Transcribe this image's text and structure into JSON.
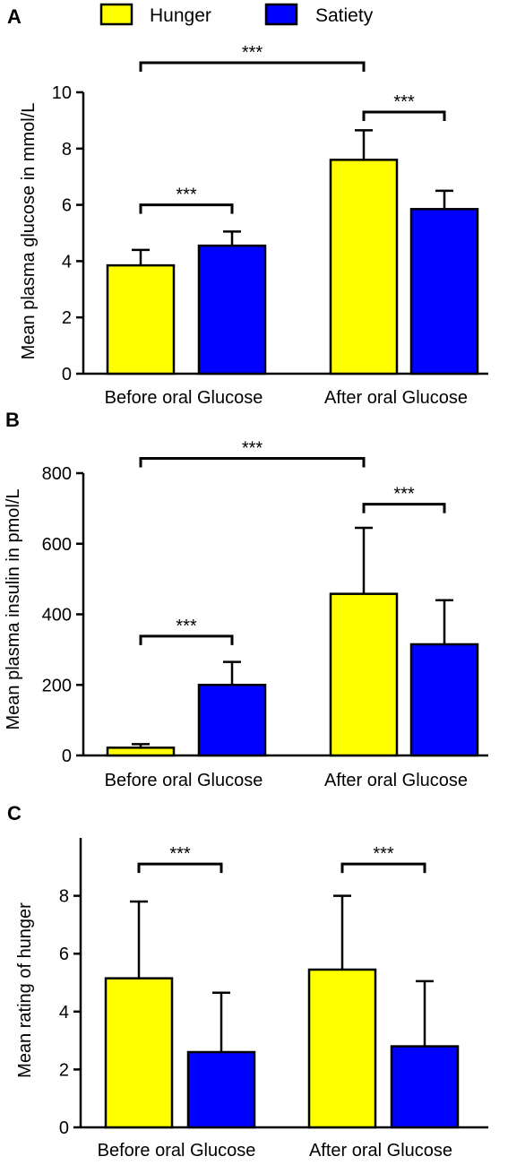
{
  "legend": [
    {
      "label": "Hunger",
      "color": "#ffff00"
    },
    {
      "label": "Satiety",
      "color": "#0000ff"
    }
  ],
  "chart_data": [
    {
      "panel": "A",
      "type": "bar",
      "categories": [
        "Before oral Glucose",
        "After oral Glucose"
      ],
      "series": [
        {
          "name": "Hunger",
          "values": [
            3.85,
            7.6
          ],
          "errors": [
            0.55,
            1.05
          ]
        },
        {
          "name": "Satiety",
          "values": [
            4.55,
            5.85
          ],
          "errors": [
            0.5,
            0.65
          ]
        }
      ],
      "ylabel": "Mean plasma glucose in mmol/L",
      "ylim": [
        0,
        10
      ],
      "yticks": [
        0,
        2,
        4,
        6,
        8,
        10
      ],
      "significance": [
        {
          "from": [
            "Before oral Glucose",
            "Hunger"
          ],
          "to": [
            "Before oral Glucose",
            "Satiety"
          ],
          "y": 6.0,
          "label": "***"
        },
        {
          "from": [
            "After oral Glucose",
            "Hunger"
          ],
          "to": [
            "After oral Glucose",
            "Satiety"
          ],
          "y": 9.3,
          "label": "***"
        },
        {
          "from": [
            "Before oral Glucose",
            "Hunger"
          ],
          "to": [
            "After oral Glucose",
            "Hunger"
          ],
          "y": 11.05,
          "label": "***"
        }
      ]
    },
    {
      "panel": "B",
      "type": "bar",
      "categories": [
        "Before oral Glucose",
        "After oral Glucose"
      ],
      "series": [
        {
          "name": "Hunger",
          "values": [
            22,
            458
          ],
          "errors": [
            10,
            187
          ]
        },
        {
          "name": "Satiety",
          "values": [
            200,
            315
          ],
          "errors": [
            65,
            125
          ]
        }
      ],
      "ylabel": "Mean plasma insulin in pmol/L",
      "ylim": [
        0,
        800
      ],
      "yticks": [
        0,
        200,
        400,
        600,
        800
      ],
      "significance": [
        {
          "from": [
            "Before oral Glucose",
            "Hunger"
          ],
          "to": [
            "Before oral Glucose",
            "Satiety"
          ],
          "y": 338,
          "label": "***"
        },
        {
          "from": [
            "After oral Glucose",
            "Hunger"
          ],
          "to": [
            "After oral Glucose",
            "Satiety"
          ],
          "y": 712,
          "label": "***"
        },
        {
          "from": [
            "Before oral Glucose",
            "Hunger"
          ],
          "to": [
            "After oral Glucose",
            "Hunger"
          ],
          "y": 842,
          "label": "***"
        }
      ]
    },
    {
      "panel": "C",
      "type": "bar",
      "categories": [
        "Before oral Glucose",
        "After oral Glucose"
      ],
      "series": [
        {
          "name": "Hunger",
          "values": [
            5.15,
            5.45
          ],
          "errors": [
            2.65,
            2.55
          ]
        },
        {
          "name": "Satiety",
          "values": [
            2.6,
            2.8
          ],
          "errors": [
            2.05,
            2.25
          ]
        }
      ],
      "ylabel": "Mean rating of hunger",
      "ylim": [
        0,
        10
      ],
      "yticks": [
        0,
        2,
        4,
        6,
        8
      ],
      "significance": [
        {
          "from": [
            "Before oral Glucose",
            "Hunger"
          ],
          "to": [
            "Before oral Glucose",
            "Satiety"
          ],
          "y": 9.1,
          "label": "***"
        },
        {
          "from": [
            "After oral Glucose",
            "Hunger"
          ],
          "to": [
            "After oral Glucose",
            "Satiety"
          ],
          "y": 9.1,
          "label": "***"
        }
      ]
    }
  ]
}
